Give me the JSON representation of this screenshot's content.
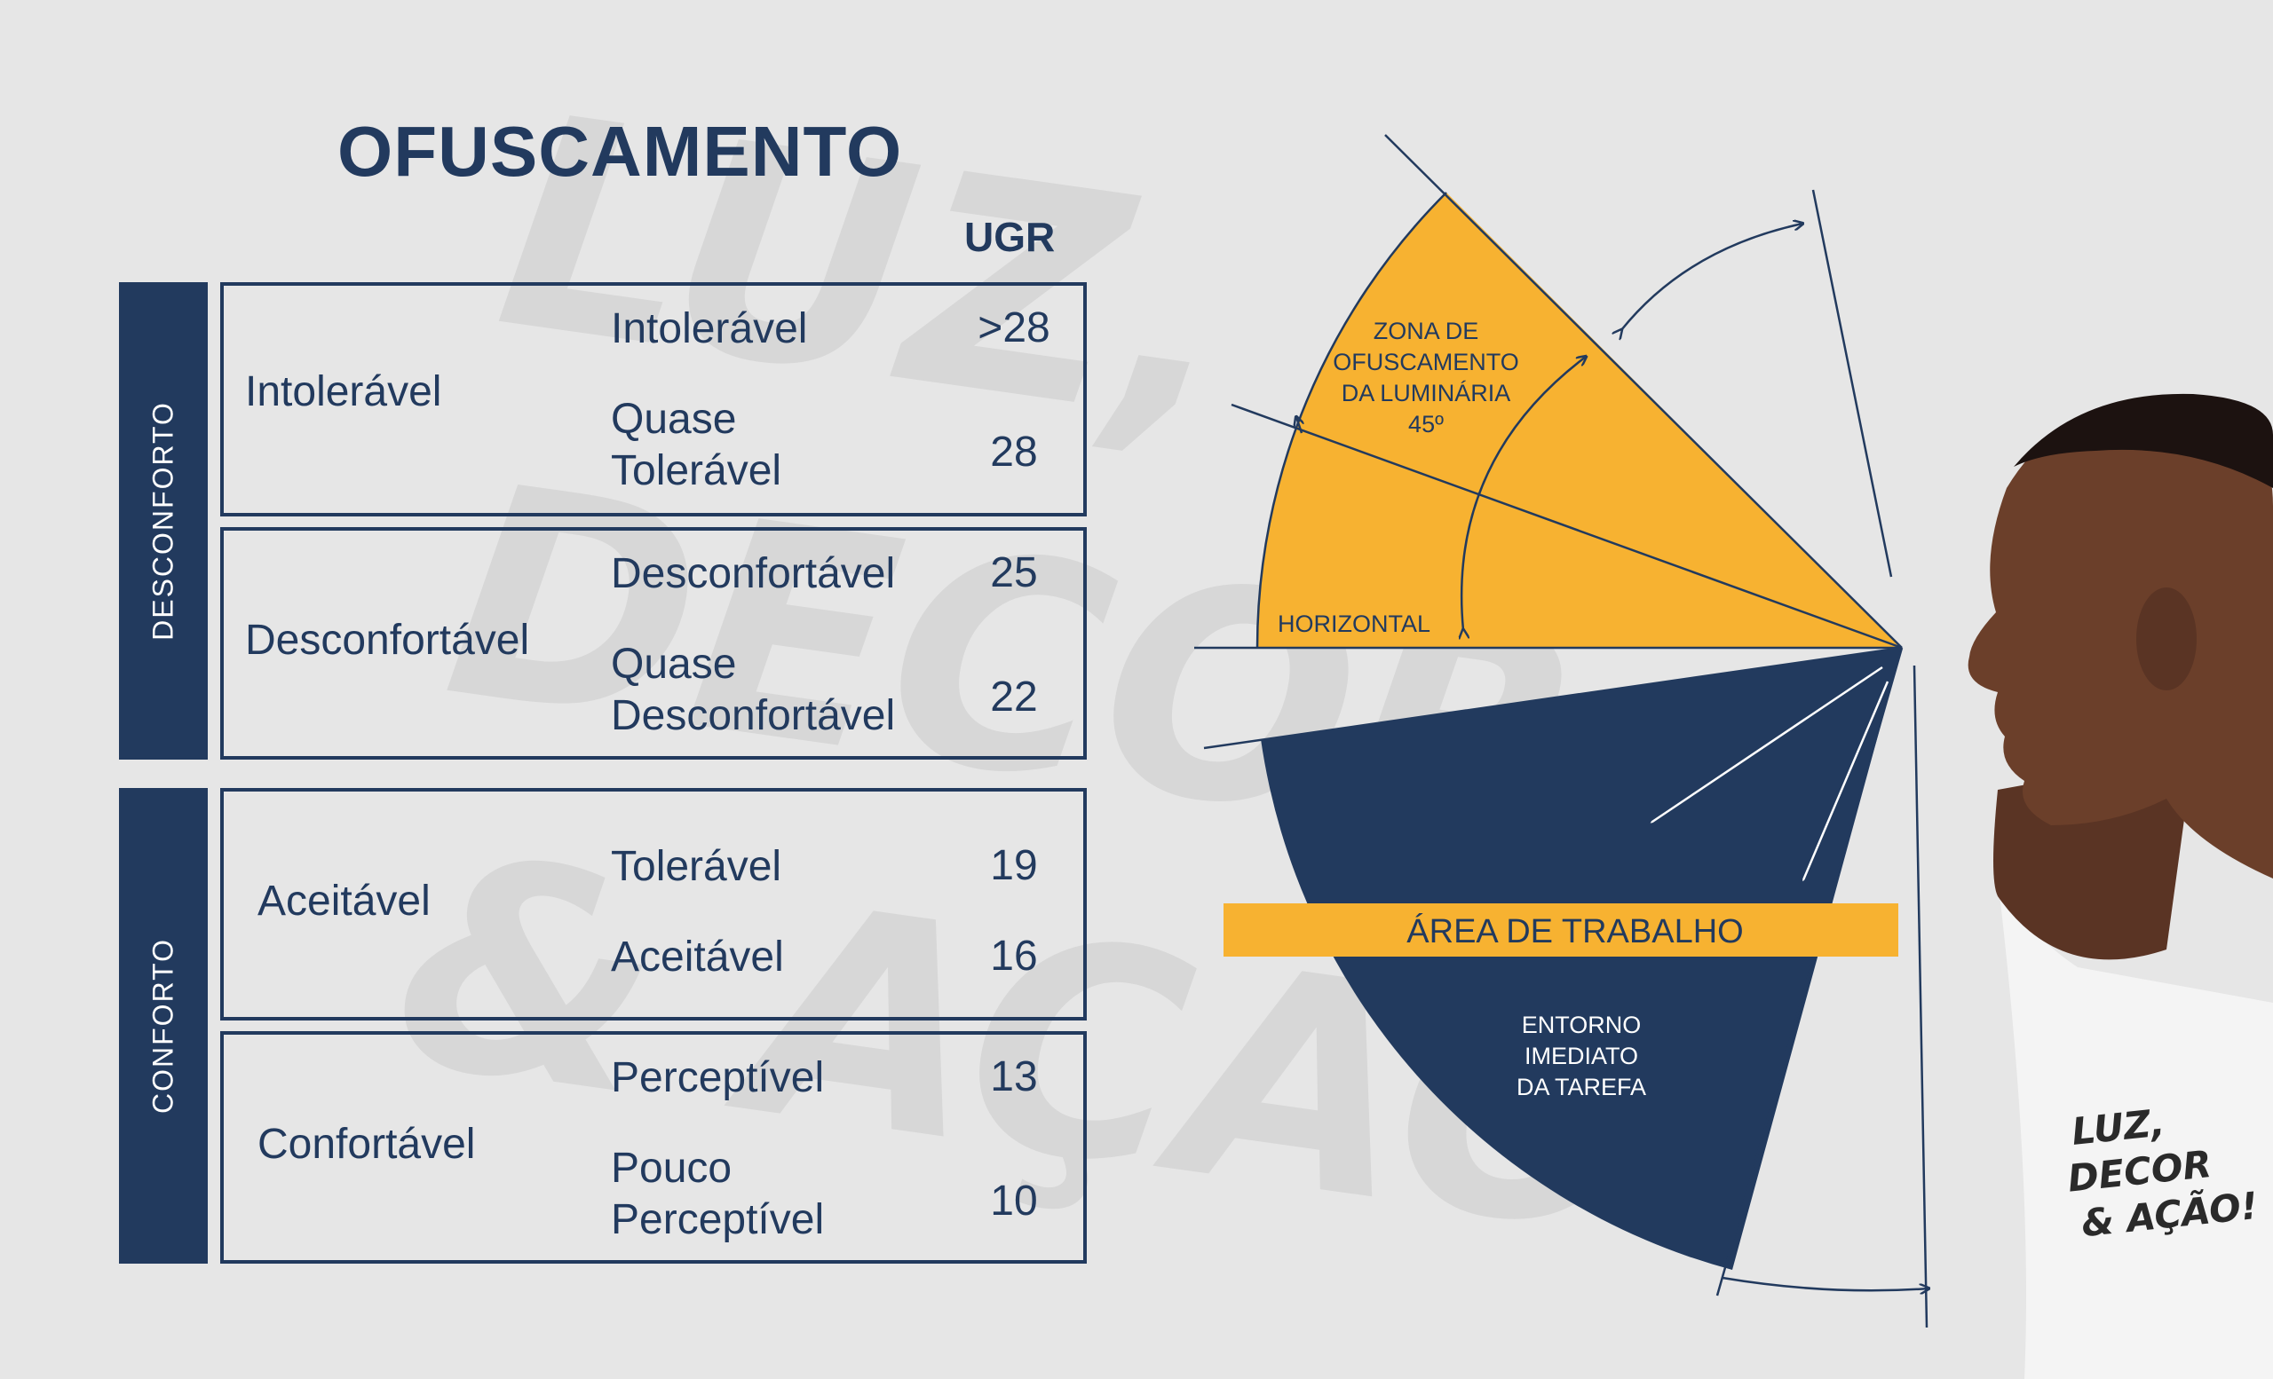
{
  "title": "OFUSCAMENTO",
  "ugr_header": "UGR",
  "watermark_text": "LUZ,\nDECOR\n& AÇÃO!",
  "groups": [
    {
      "side_label": "DESCONFORTO",
      "boxes": [
        {
          "category": "Intolerável",
          "rows": [
            {
              "level": "Intolerável",
              "ugr": ">28"
            },
            {
              "level": "Quase\nTolerável",
              "ugr": "28"
            }
          ]
        },
        {
          "category": "Desconfortável",
          "rows": [
            {
              "level": "Desconfortável",
              "ugr": "25"
            },
            {
              "level": "Quase\nDesconfortável",
              "ugr": "22"
            }
          ]
        }
      ]
    },
    {
      "side_label": "CONFORTO",
      "boxes": [
        {
          "category": "Aceitável",
          "rows": [
            {
              "level": "Tolerável",
              "ugr": "19"
            },
            {
              "level": "Aceitável",
              "ugr": "16"
            }
          ]
        },
        {
          "category": "Confortável",
          "rows": [
            {
              "level": "Perceptível",
              "ugr": "13"
            },
            {
              "level": "Pouco\nPerceptível",
              "ugr": "10"
            }
          ]
        }
      ]
    }
  ],
  "diagram": {
    "glare_zone_label": [
      "ZONA DE",
      "OFUSCAMENTO",
      "DA LUMINÁRIA",
      "45º"
    ],
    "horizontal_label": "HORIZONTAL",
    "work_area_label": "ÁREA DE TRABALHO",
    "surroundings_label": [
      "ENTORNO",
      "IMEDIATO",
      "DA TAREFA"
    ]
  },
  "logo_text": [
    "LUZ,",
    "DECOR",
    "& AÇÃO!"
  ],
  "colors": {
    "background": "#e6e6e6",
    "navy": "#223a5e",
    "orange": "#f7b231",
    "white": "#ffffff"
  }
}
